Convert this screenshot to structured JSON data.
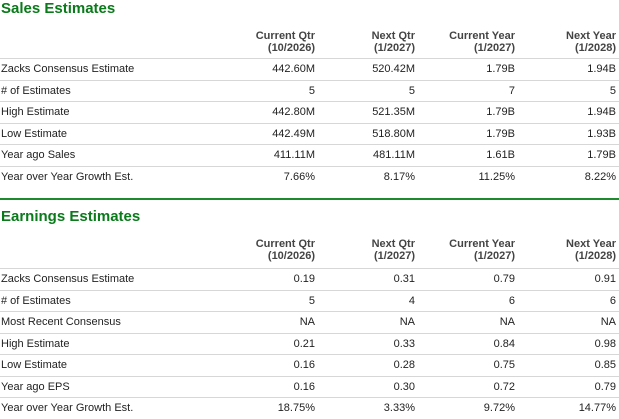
{
  "sales": {
    "title": "Sales Estimates",
    "columns": [
      {
        "line1": "Current Qtr",
        "line2": "(10/2026)"
      },
      {
        "line1": "Next Qtr",
        "line2": "(1/2027)"
      },
      {
        "line1": "Current Year",
        "line2": "(1/2027)"
      },
      {
        "line1": "Next Year",
        "line2": "(1/2028)"
      }
    ],
    "rows": [
      {
        "label": "Zacks Consensus Estimate",
        "values": [
          "442.60M",
          "520.42M",
          "1.79B",
          "1.94B"
        ]
      },
      {
        "label": "# of Estimates",
        "values": [
          "5",
          "5",
          "7",
          "5"
        ]
      },
      {
        "label": "High Estimate",
        "values": [
          "442.80M",
          "521.35M",
          "1.79B",
          "1.94B"
        ]
      },
      {
        "label": "Low Estimate",
        "values": [
          "442.49M",
          "518.80M",
          "1.79B",
          "1.93B"
        ]
      },
      {
        "label": "Year ago Sales",
        "values": [
          "411.11M",
          "481.11M",
          "1.61B",
          "1.79B"
        ]
      },
      {
        "label": "Year over Year Growth Est.",
        "values": [
          "7.66%",
          "8.17%",
          "11.25%",
          "8.22%"
        ]
      }
    ]
  },
  "earnings": {
    "title": "Earnings Estimates",
    "columns": [
      {
        "line1": "Current Qtr",
        "line2": "(10/2026)"
      },
      {
        "line1": "Next Qtr",
        "line2": "(1/2027)"
      },
      {
        "line1": "Current Year",
        "line2": "(1/2027)"
      },
      {
        "line1": "Next Year",
        "line2": "(1/2028)"
      }
    ],
    "rows": [
      {
        "label": "Zacks Consensus Estimate",
        "values": [
          "0.19",
          "0.31",
          "0.79",
          "0.91"
        ]
      },
      {
        "label": "# of Estimates",
        "values": [
          "5",
          "4",
          "6",
          "6"
        ]
      },
      {
        "label": "Most Recent Consensus",
        "values": [
          "NA",
          "NA",
          "NA",
          "NA"
        ]
      },
      {
        "label": "High Estimate",
        "values": [
          "0.21",
          "0.33",
          "0.84",
          "0.98"
        ]
      },
      {
        "label": "Low Estimate",
        "values": [
          "0.16",
          "0.28",
          "0.75",
          "0.85"
        ]
      },
      {
        "label": "Year ago EPS",
        "values": [
          "0.16",
          "0.30",
          "0.72",
          "0.79"
        ]
      },
      {
        "label": "Year over Year Growth Est.",
        "values": [
          "18.75%",
          "3.33%",
          "9.72%",
          "14.77%"
        ]
      }
    ]
  },
  "colors": {
    "title_green": "#0a7a1b",
    "divider_green": "#1e8a2e",
    "row_border": "#d7d7d7"
  }
}
